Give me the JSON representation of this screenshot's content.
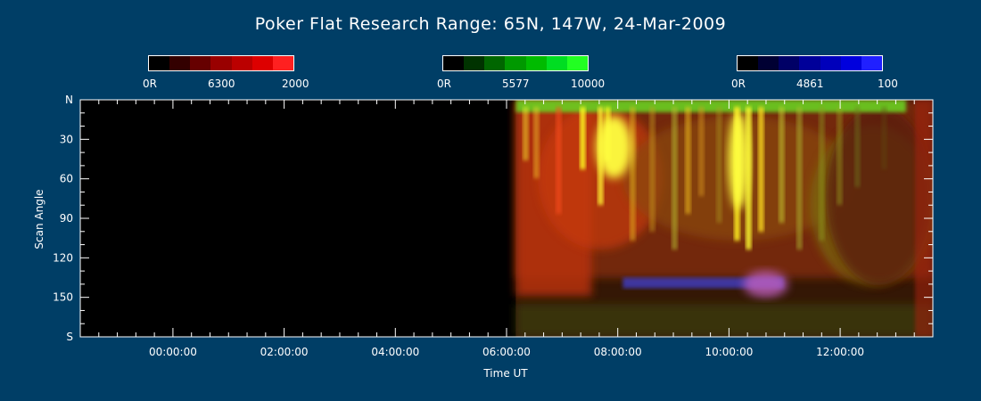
{
  "title": "Poker Flat Research Range: 65N, 147W, 24-Mar-2009",
  "colorbars": [
    {
      "name": "red-6300",
      "min_label": "0R",
      "wavelength": "6300",
      "max_label": "2000",
      "colors": [
        "#000000",
        "#330000",
        "#660000",
        "#990000",
        "#bb0000",
        "#dd0000",
        "#ff2020"
      ]
    },
    {
      "name": "green-5577",
      "min_label": "0R",
      "wavelength": "5577",
      "max_label": "10000",
      "colors": [
        "#000000",
        "#003300",
        "#006600",
        "#009900",
        "#00bb00",
        "#00dd22",
        "#22ff22"
      ]
    },
    {
      "name": "blue-4861",
      "min_label": "0R",
      "wavelength": "4861",
      "max_label": "100",
      "colors": [
        "#000000",
        "#000033",
        "#000066",
        "#000099",
        "#0000bb",
        "#0000dd",
        "#2020ff"
      ]
    }
  ],
  "chart_data": {
    "type": "heatmap",
    "title": "Poker Flat Research Range: 65N, 147W, 24-Mar-2009",
    "xlabel": "Time UT",
    "ylabel": "Scan Angle",
    "xlim": [
      "-01:40:00",
      "13:40:00"
    ],
    "ylim": [
      0,
      180
    ],
    "xticks": [
      "00:00:00",
      "02:00:00",
      "04:00:00",
      "06:00:00",
      "08:00:00",
      "10:00:00",
      "12:00:00"
    ],
    "xtick_hours": [
      0,
      2,
      4,
      6,
      8,
      10,
      12
    ],
    "yticks": [
      "N",
      "30",
      "60",
      "90",
      "120",
      "150",
      "S"
    ],
    "ytick_values": [
      0,
      30,
      60,
      90,
      120,
      150,
      180
    ],
    "data_start": "06:10:00",
    "channels": [
      "6300 red",
      "5577 green",
      "4861 blue"
    ]
  }
}
